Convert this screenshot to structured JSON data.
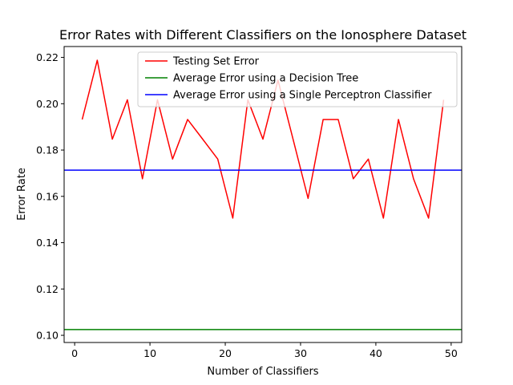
{
  "chart_data": {
    "type": "line",
    "title": "Error Rates with Different Classifiers on the Ionosphere Dataset",
    "xlabel": "Number of Classifiers",
    "ylabel": "Error Rate",
    "xlim": [
      -1.4,
      51.4
    ],
    "ylim": [
      0.0969,
      0.2247
    ],
    "xticks": [
      0,
      10,
      20,
      30,
      40,
      50
    ],
    "yticks": [
      0.1,
      0.12,
      0.14,
      0.16,
      0.18,
      0.2,
      0.22
    ],
    "grid": false,
    "legend_position": "top-right",
    "series": [
      {
        "name": "Testing Set Error",
        "color": "#ff0000",
        "kind": "line",
        "x": [
          1,
          3,
          5,
          7,
          9,
          11,
          13,
          15,
          17,
          19,
          21,
          23,
          25,
          27,
          29,
          31,
          33,
          35,
          37,
          39,
          41,
          43,
          45,
          47,
          49
        ],
        "y": [
          0.1932,
          0.2188,
          0.1847,
          0.2017,
          0.1676,
          0.2017,
          0.1761,
          0.1932,
          0.1847,
          0.1761,
          0.1506,
          0.2017,
          0.1847,
          0.2102,
          0.1847,
          0.1591,
          0.1932,
          0.1932,
          0.1676,
          0.1761,
          0.1506,
          0.1932,
          0.1676,
          0.1506,
          0.2017
        ]
      },
      {
        "name": "Average Error using a Decision Tree",
        "color": "#008000",
        "kind": "hline",
        "y": 0.1025
      },
      {
        "name": "Average Error using a Single Perceptron Classifier",
        "color": "#0000ff",
        "kind": "hline",
        "y": 0.1713
      }
    ]
  }
}
